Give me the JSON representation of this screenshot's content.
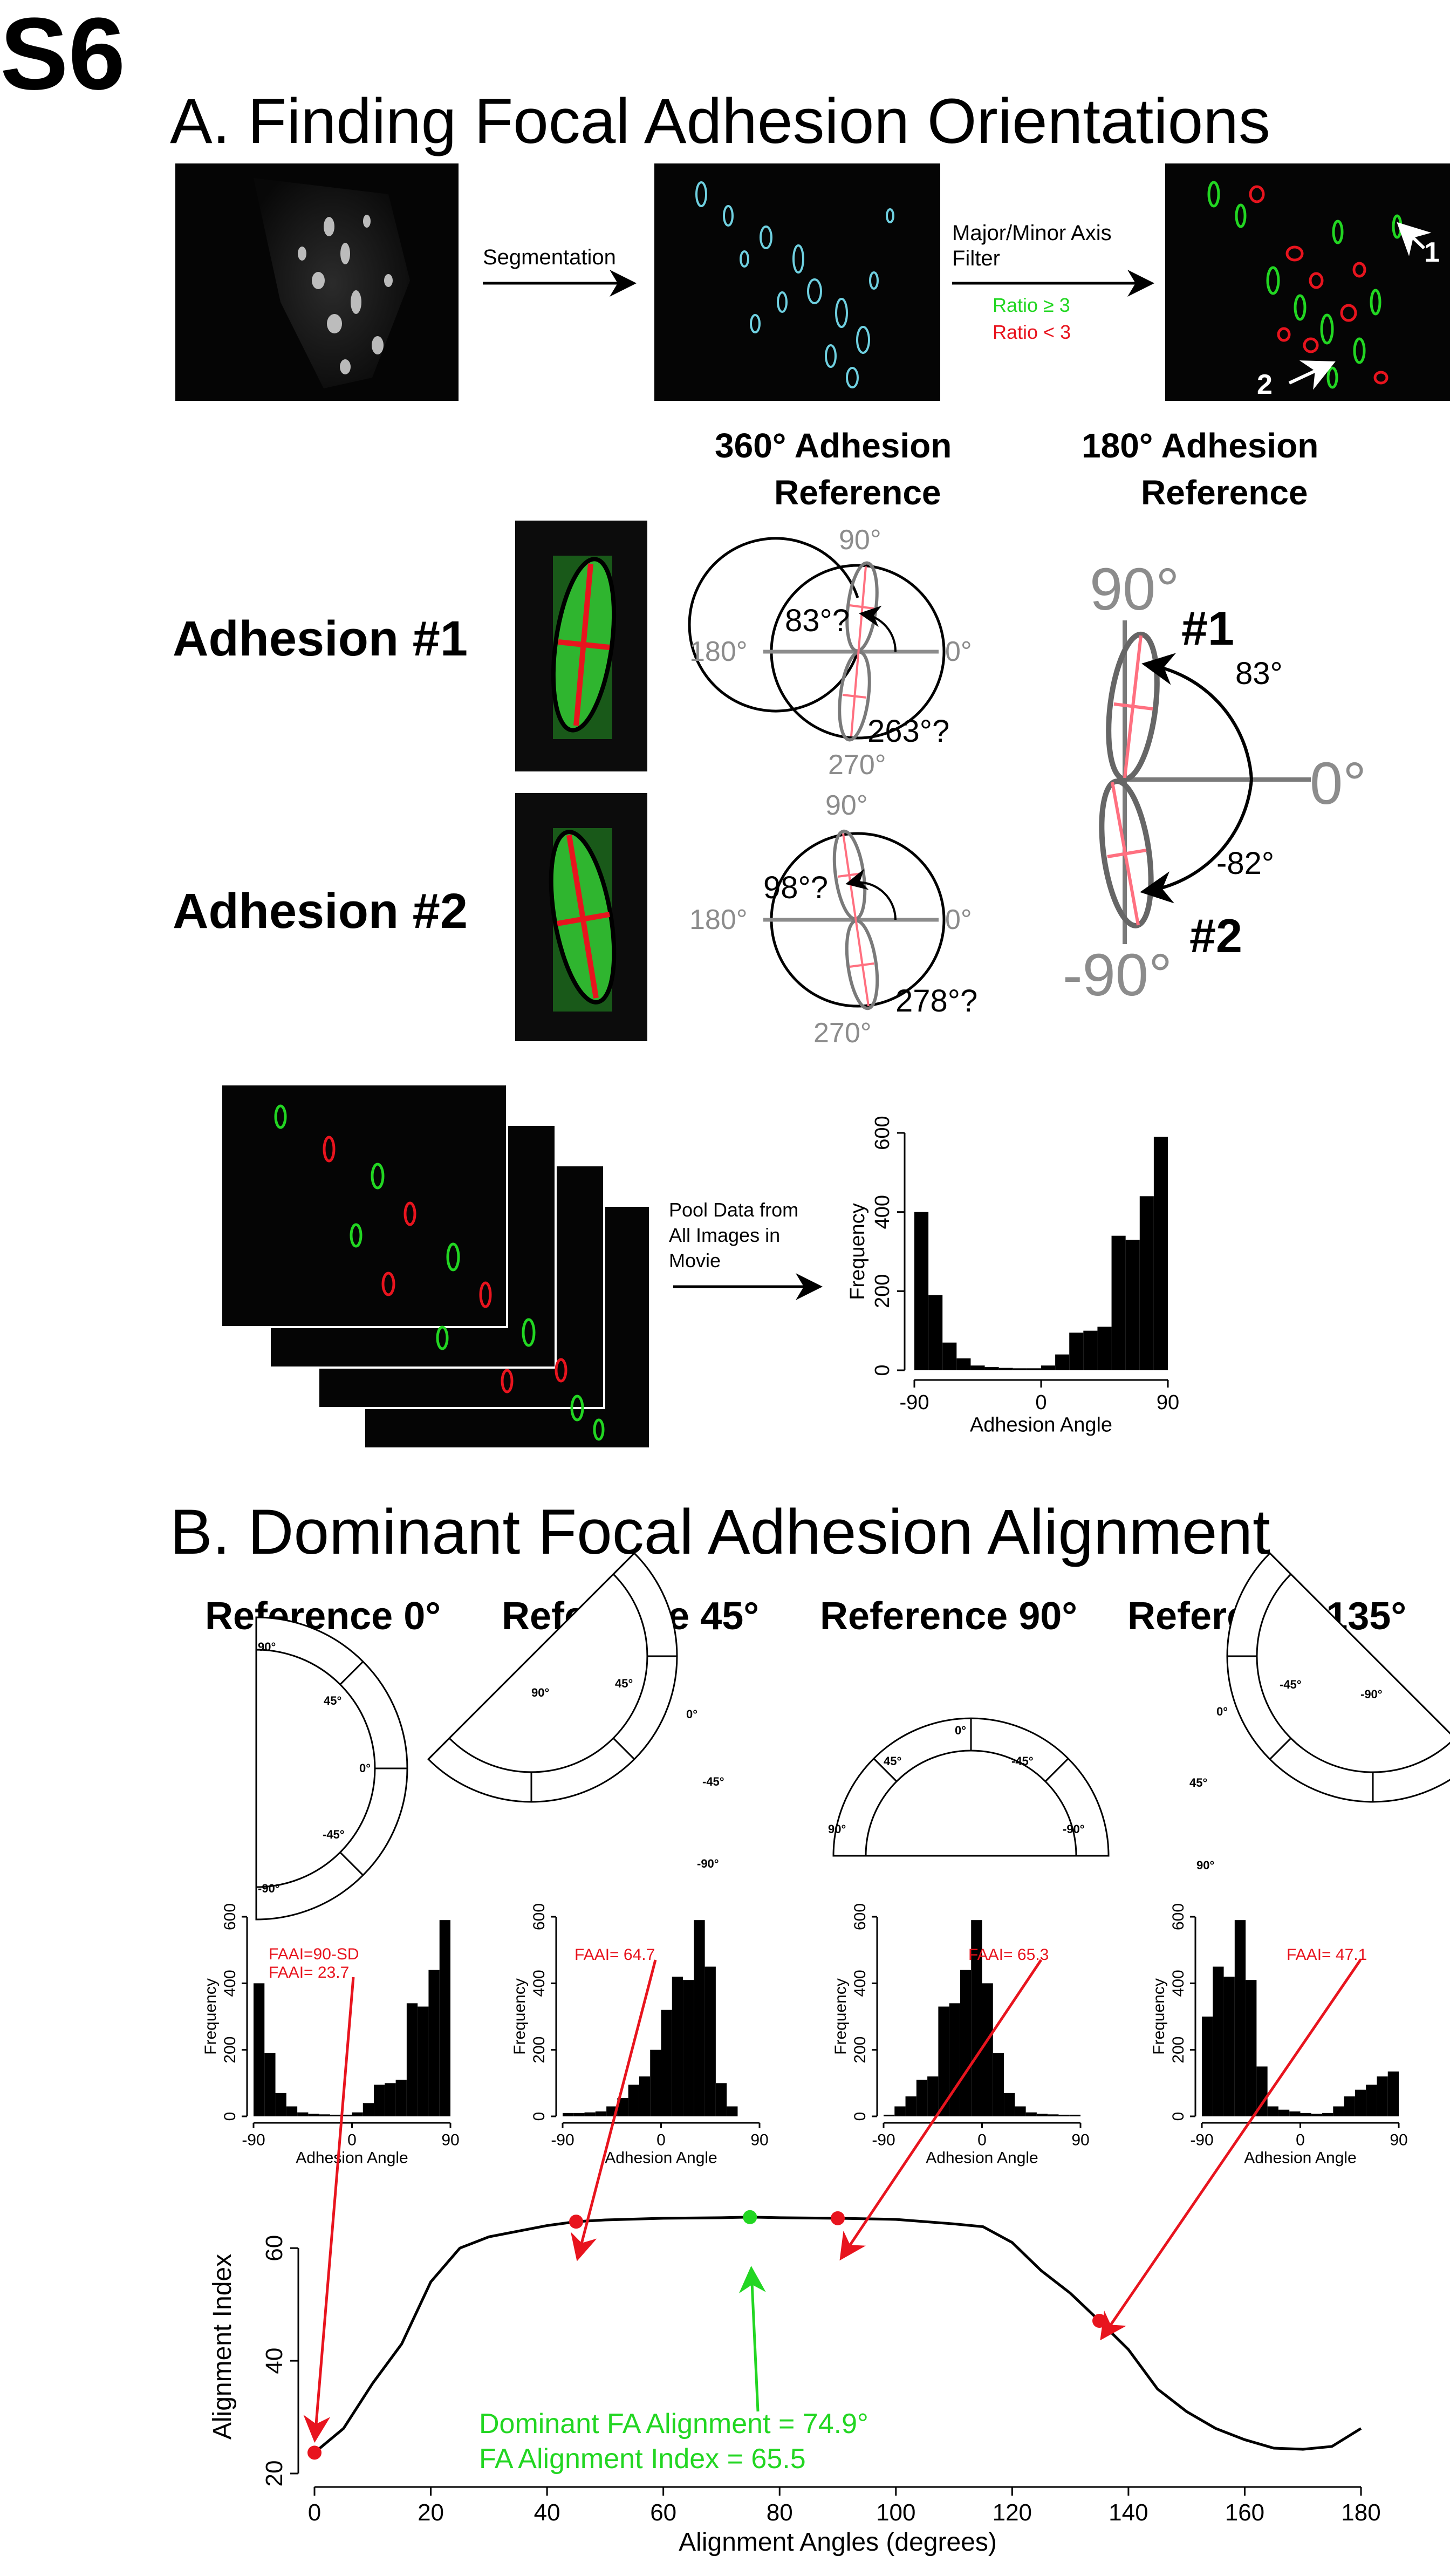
{
  "figure_label": "S6",
  "colors": {
    "green": "#22d622",
    "red": "#e8141e",
    "grey": "#8c8c8c",
    "cyan": "#6fd0e0",
    "pink": "#ff7080"
  },
  "panel_a": {
    "title": "A. Finding Focal Adhesion Orientations",
    "segmentation_label": "Segmentation",
    "filter_label_line1": "Major/Minor Axis",
    "filter_label_line2": "Filter",
    "ratio_ge": "Ratio ≥ 3",
    "ratio_lt": "Ratio < 3",
    "callout_1": "1",
    "callout_2": "2",
    "ref360_title_line1": "360° Adhesion",
    "ref360_title_line2": "Reference",
    "ref180_title_line1": "180° Adhesion",
    "ref180_title_line2": "Reference",
    "adhesion1_label": "Adhesion #1",
    "adhesion2_label": "Adhesion #2",
    "polar1": {
      "deg90": "90°",
      "deg180": "180°",
      "deg0": "0°",
      "deg270": "270°",
      "angle_a": "83°?",
      "angle_b": "263°?"
    },
    "polar2": {
      "deg90": "90°",
      "deg180": "180°",
      "deg0": "0°",
      "deg270": "270°",
      "angle_a": "98°?",
      "angle_b": "278°?"
    },
    "ref180": {
      "deg90": "90°",
      "deg0": "0°",
      "degm90": "-90°",
      "tag1": "#1",
      "tag2": "#2",
      "angle1": "83°",
      "angle2": "-82°"
    },
    "pool_label_line1": "Pool Data from",
    "pool_label_line2": "All Images in",
    "pool_label_line3": "Movie"
  },
  "panel_b": {
    "title": "B. Dominant Focal Adhesion Alignment",
    "references": [
      {
        "title": "Reference 0°",
        "ticks": [
          "90°",
          "45°",
          "0°",
          "-45°",
          "-90°"
        ],
        "faai": "FAAI= 23.7",
        "faai_note": "FAAI=90-SD"
      },
      {
        "title": "Reference 45°",
        "ticks": [
          "90°",
          "45°",
          "0°",
          "-45°",
          "-90°"
        ],
        "faai": "FAAI= 64.7"
      },
      {
        "title": "Reference 90°",
        "ticks": [
          "90°",
          "45°",
          "0°",
          "-45°",
          "-90°"
        ],
        "faai": "FAAI= 65.3"
      },
      {
        "title": "Reference 135°",
        "ticks": [
          "90°",
          "45°",
          "0°",
          "-45°",
          "-90°"
        ],
        "faai": "FAAI= 47.1"
      }
    ],
    "dominant_line1": "Dominant FA Alignment = 74.9°",
    "dominant_line2": "FA Alignment Index = 65.5"
  },
  "chart_data": [
    {
      "type": "bar",
      "name": "pooled-histogram",
      "xlabel": "Adhesion Angle",
      "ylabel": "Frequency",
      "xlim": [
        -90,
        90
      ],
      "ylim": [
        0,
        600
      ],
      "xticks": [
        -90,
        0,
        90
      ],
      "yticks": [
        0,
        200,
        400,
        600
      ],
      "bin_width": 10,
      "bin_starts": [
        -90,
        -80,
        -70,
        -60,
        -50,
        -40,
        -30,
        -20,
        -10,
        0,
        10,
        20,
        30,
        40,
        50,
        60,
        70,
        80
      ],
      "values": [
        400,
        190,
        70,
        30,
        12,
        8,
        6,
        5,
        5,
        12,
        40,
        95,
        100,
        110,
        340,
        330,
        440,
        590
      ]
    },
    {
      "type": "bar",
      "name": "histogram-reference-0",
      "xlabel": "Adhesion Angle",
      "ylabel": "Frequency",
      "xlim": [
        -90,
        90
      ],
      "ylim": [
        0,
        600
      ],
      "xticks": [
        -90,
        0,
        90
      ],
      "yticks": [
        0,
        200,
        400,
        600
      ],
      "bin_width": 10,
      "bin_starts": [
        -90,
        -80,
        -70,
        -60,
        -50,
        -40,
        -30,
        -20,
        -10,
        0,
        10,
        20,
        30,
        40,
        50,
        60,
        70,
        80
      ],
      "values": [
        400,
        190,
        70,
        30,
        12,
        8,
        6,
        5,
        5,
        12,
        40,
        95,
        100,
        110,
        340,
        330,
        440,
        590
      ]
    },
    {
      "type": "bar",
      "name": "histogram-reference-45",
      "xlabel": "Adhesion Angle",
      "ylabel": "Frequency",
      "xlim": [
        -90,
        90
      ],
      "ylim": [
        0,
        600
      ],
      "xticks": [
        -90,
        0,
        90
      ],
      "yticks": [
        0,
        200,
        400,
        600
      ],
      "bin_width": 10,
      "bin_starts": [
        -90,
        -80,
        -70,
        -60,
        -50,
        -40,
        -30,
        -20,
        -10,
        0,
        10,
        20,
        30,
        40,
        50,
        60,
        70,
        80
      ],
      "values": [
        10,
        10,
        12,
        15,
        30,
        55,
        95,
        120,
        200,
        320,
        420,
        410,
        590,
        450,
        100,
        30,
        0,
        0
      ]
    },
    {
      "type": "bar",
      "name": "histogram-reference-90",
      "xlabel": "Adhesion Angle",
      "ylabel": "Frequency",
      "xlim": [
        -90,
        90
      ],
      "ylim": [
        0,
        600
      ],
      "xticks": [
        -90,
        0,
        90
      ],
      "yticks": [
        0,
        200,
        400,
        600
      ],
      "bin_width": 10,
      "bin_starts": [
        -90,
        -80,
        -70,
        -60,
        -50,
        -40,
        -30,
        -20,
        -10,
        0,
        10,
        20,
        30,
        40,
        50,
        60,
        70,
        80
      ],
      "values": [
        5,
        30,
        60,
        110,
        120,
        330,
        340,
        440,
        590,
        400,
        190,
        70,
        30,
        12,
        8,
        6,
        5,
        5
      ]
    },
    {
      "type": "bar",
      "name": "histogram-reference-135",
      "xlabel": "Adhesion Angle",
      "ylabel": "Frequency",
      "xlim": [
        -90,
        90
      ],
      "ylim": [
        0,
        600
      ],
      "xticks": [
        -90,
        0,
        90
      ],
      "yticks": [
        0,
        200,
        400,
        600
      ],
      "bin_width": 10,
      "bin_starts": [
        -90,
        -80,
        -70,
        -60,
        -50,
        -40,
        -30,
        -20,
        -10,
        0,
        10,
        20,
        30,
        40,
        50,
        60,
        70,
        80
      ],
      "values": [
        300,
        450,
        420,
        590,
        410,
        150,
        30,
        20,
        15,
        10,
        8,
        10,
        30,
        60,
        80,
        95,
        120,
        135
      ]
    },
    {
      "type": "line",
      "name": "alignment-index-curve",
      "xlabel": "Alignment Angles (degrees)",
      "ylabel": "Alignment Index",
      "xlim": [
        0,
        180
      ],
      "ylim": [
        20,
        65
      ],
      "xticks": [
        0,
        20,
        40,
        60,
        80,
        100,
        120,
        140,
        160,
        180
      ],
      "yticks": [
        20,
        40,
        60
      ],
      "x": [
        0,
        5,
        10,
        15,
        20,
        25,
        30,
        40,
        45,
        50,
        60,
        70,
        74.9,
        80,
        90,
        100,
        110,
        115,
        120,
        125,
        130,
        135,
        140,
        145,
        150,
        155,
        160,
        165,
        170,
        175,
        180
      ],
      "y": [
        23.7,
        28,
        36,
        43,
        54,
        60,
        62,
        64,
        64.7,
        65,
        65.3,
        65.4,
        65.5,
        65.4,
        65.3,
        65.1,
        64.3,
        63.8,
        61,
        56,
        52,
        47.1,
        42,
        35,
        31,
        28,
        26,
        24.5,
        24.3,
        24.8,
        28
      ],
      "markers": [
        {
          "x": 0,
          "y": 23.7,
          "color": "red"
        },
        {
          "x": 45,
          "y": 64.7,
          "color": "red"
        },
        {
          "x": 74.9,
          "y": 65.5,
          "color": "green"
        },
        {
          "x": 90,
          "y": 65.3,
          "color": "red"
        },
        {
          "x": 135,
          "y": 47.1,
          "color": "red"
        }
      ]
    }
  ]
}
